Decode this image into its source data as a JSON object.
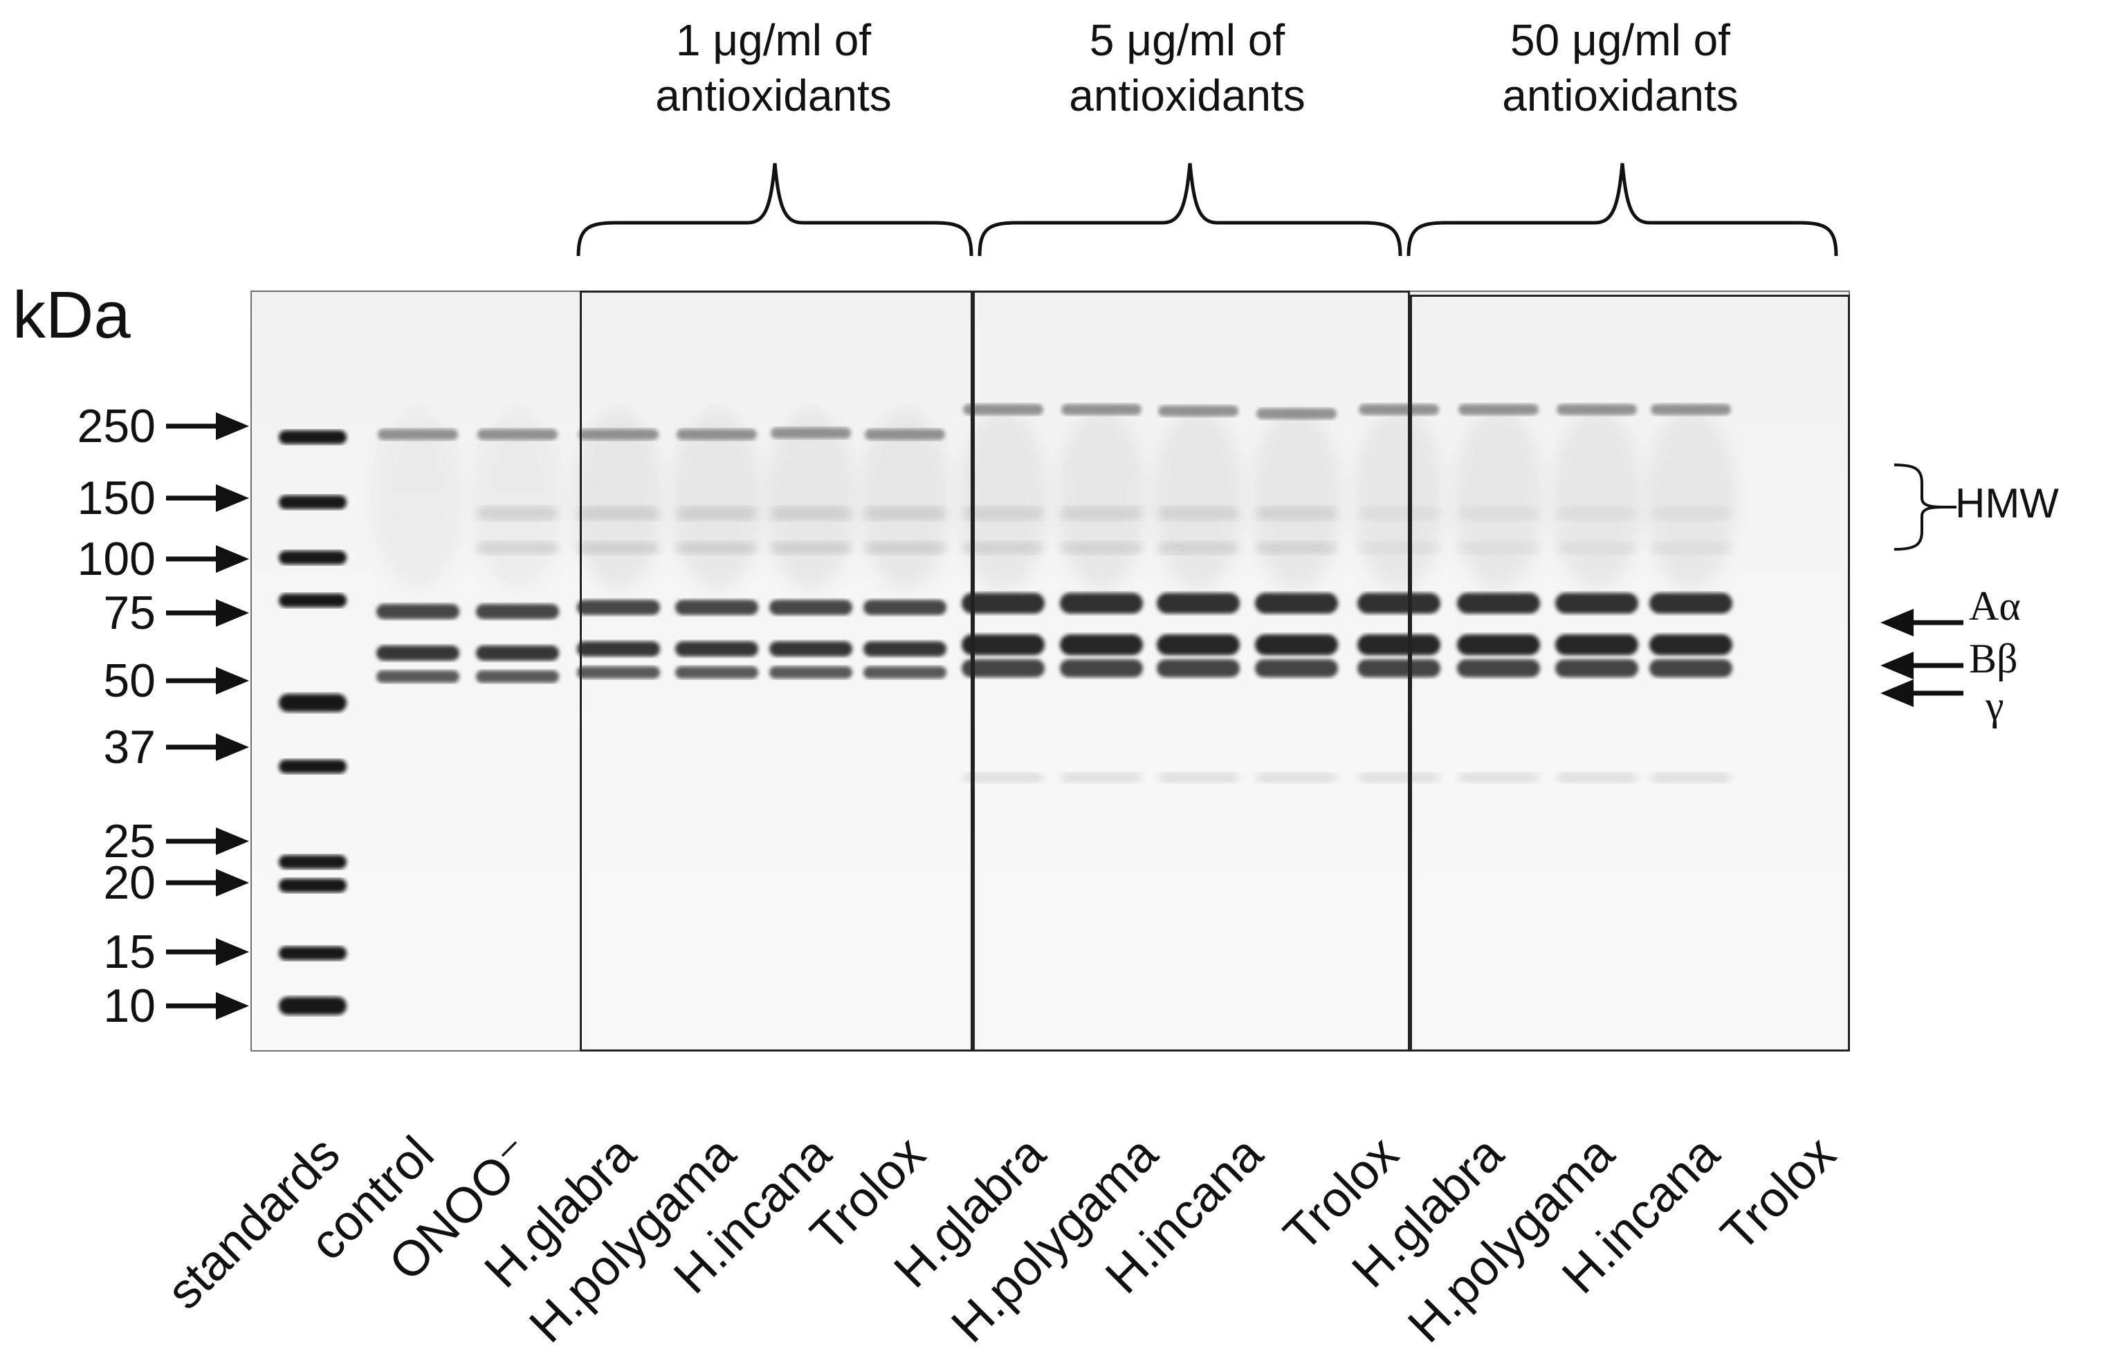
{
  "unit_label": "kDa",
  "markers": [
    {
      "label": "250",
      "kda": 250
    },
    {
      "label": "150",
      "kda": 150
    },
    {
      "label": "100",
      "kda": 100
    },
    {
      "label": "75",
      "kda": 75
    },
    {
      "label": "50",
      "kda": 50
    },
    {
      "label": "37",
      "kda": 37
    },
    {
      "label": "25",
      "kda": 25
    },
    {
      "label": "20",
      "kda": 20
    },
    {
      "label": "15",
      "kda": 15
    },
    {
      "label": "10",
      "kda": 10
    }
  ],
  "groups": [
    {
      "line1": "1 μg/ml of",
      "line2": "antioxidants"
    },
    {
      "line1": "5 μg/ml of",
      "line2": "antioxidants"
    },
    {
      "line1": "50 μg/ml of",
      "line2": "antioxidants"
    }
  ],
  "lanes": [
    "standards",
    "control",
    "ONOO⁻",
    "H.glabra",
    "H.polygama",
    "H.incana",
    "Trolox",
    "H.glabra",
    "H.polygama",
    "H.incana",
    "Trolox",
    "H.glabra",
    "H.polygama",
    "H.incana",
    "Trolox"
  ],
  "annotations": {
    "hmw": "HMW",
    "alpha": "Aα",
    "beta": "Bβ",
    "gamma": "γ"
  }
}
